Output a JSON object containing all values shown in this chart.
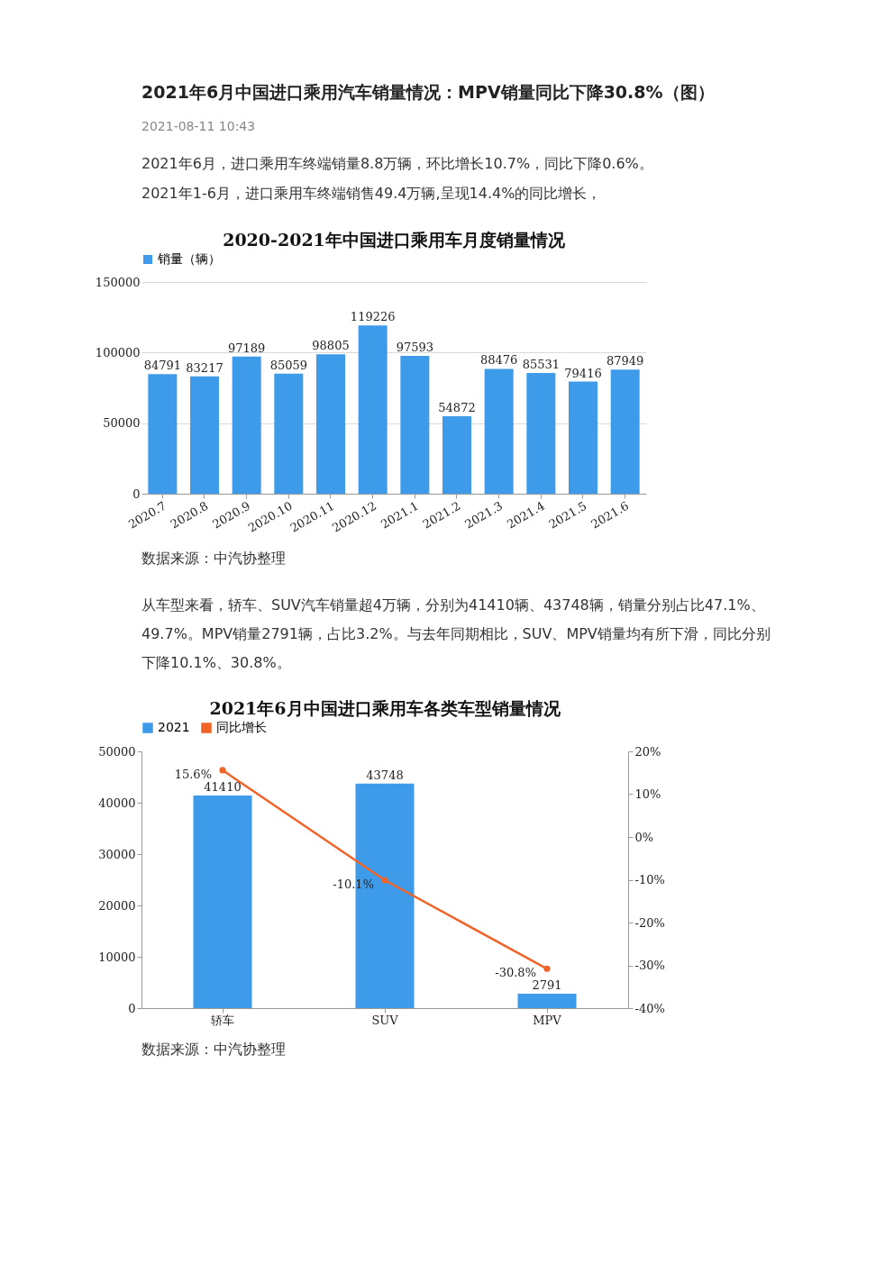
{
  "chart_data": [
    {
      "type": "bar",
      "title": "2020-2021年中国进口乘用车月度销量情况",
      "annotations": [
        "2021年6月中国进口乘用汽车销量情况：MPV销量同比下降30.8%（图）",
        "2021-08-11 10:43",
        "2021年6月，进口乘用车终端销量8.8万辆，环比增长10.7%，同比下降0.6%。",
        "2021年1-6月，进口乘用车终端销售49.4万辆,呈现14.4%的同比增长，",
        "数据来源：中汽协整理"
      ],
      "categories": [
        "2020.7",
        "2020.8",
        "2020.9",
        "2020.10",
        "2020.11",
        "2020.12",
        "2021.1",
        "2021.2",
        "2021.3",
        "2021.4",
        "2021.5",
        "2021.6"
      ],
      "series": [
        {
          "name": "销量（辆）",
          "color": "#3d9be9",
          "values": [
            84791,
            83217,
            97189,
            85059,
            98805,
            119226,
            97593,
            54872,
            88476,
            85531,
            79416,
            87949
          ]
        }
      ],
      "ylim": [
        0,
        150000
      ],
      "yticks": [
        0,
        50000,
        100000,
        150000
      ],
      "grid": "y",
      "legend": "top",
      "data_labels": true
    },
    {
      "type": "bar",
      "title": "2021年6月中国进口乘用车各类车型销量情况",
      "annotations": [
        "从车型来看，轿车、SUV汽车销量超4万辆，分别为41410辆、43748辆，销量分别占比47.1%、",
        "49.7%。MPV销量2791辆，占比3.2%。与去年同期相比，SUV、MPV销量均有所下滑，同比分别",
        "下降10.1%、30.8%。",
        "数据来源：中汽协整理"
      ],
      "categories": [
        "轿车",
        "SUV",
        "MPV"
      ],
      "series": [
        {
          "name": "2021",
          "color": "#3d9be9",
          "values": [
            41410,
            43748,
            2791
          ],
          "data_labels": true
        },
        {
          "name": "同比增长",
          "type": "line",
          "axis": "y2",
          "color": "#f0642a",
          "marker": "circle",
          "values": [
            15.6,
            -10.1,
            -30.8
          ],
          "value_labels": [
            "15.6%",
            "-10.1%",
            "-30.8%"
          ]
        }
      ],
      "ylim": [
        0,
        50000
      ],
      "yticks": [
        0,
        10000,
        20000,
        30000,
        40000,
        50000
      ],
      "y2lim": [
        -40,
        20
      ],
      "y2ticks": [
        {
          "value": -40,
          "label": "-40%"
        },
        {
          "value": -30,
          "label": "-30%"
        },
        {
          "value": -20,
          "label": "-20%"
        },
        {
          "value": -10,
          "label": "-10%"
        },
        {
          "value": 0,
          "label": "0%"
        },
        {
          "value": 10,
          "label": "10%"
        },
        {
          "value": 20,
          "label": "20%"
        }
      ],
      "grid": false,
      "legend": "top"
    }
  ]
}
